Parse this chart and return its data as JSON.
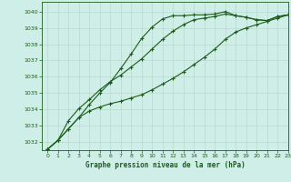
{
  "title": "Graphe pression niveau de la mer (hPa)",
  "background_color": "#d0eee8",
  "grid_color": "#b8d8cc",
  "line_color": "#1a5c1a",
  "xlim": [
    -0.5,
    23
  ],
  "ylim": [
    1031.5,
    1040.6
  ],
  "yticks": [
    1032,
    1033,
    1034,
    1035,
    1036,
    1037,
    1038,
    1039,
    1040
  ],
  "xticks": [
    0,
    1,
    2,
    3,
    4,
    5,
    6,
    7,
    8,
    9,
    10,
    11,
    12,
    13,
    14,
    15,
    16,
    17,
    18,
    19,
    20,
    21,
    22,
    23
  ],
  "series": {
    "line1": [
      1031.55,
      1032.1,
      1032.8,
      1033.5,
      1034.3,
      1035.0,
      1035.65,
      1036.5,
      1037.4,
      1038.35,
      1039.05,
      1039.55,
      1039.75,
      1039.75,
      1039.8,
      1039.8,
      1039.85,
      1040.0,
      1039.75,
      1039.65,
      1039.5,
      1039.45,
      1039.7,
      1039.8
    ],
    "line2": [
      1031.55,
      1032.1,
      1033.3,
      1034.05,
      1034.6,
      1035.2,
      1035.7,
      1036.1,
      1036.6,
      1037.1,
      1037.7,
      1038.3,
      1038.8,
      1039.2,
      1039.5,
      1039.6,
      1039.7,
      1039.85,
      1039.75,
      1039.65,
      1039.5,
      1039.45,
      1039.7,
      1039.8
    ],
    "line3": [
      1031.55,
      1032.1,
      1032.8,
      1033.5,
      1033.9,
      1034.15,
      1034.35,
      1034.5,
      1034.7,
      1034.9,
      1035.2,
      1035.55,
      1035.9,
      1036.3,
      1036.75,
      1037.2,
      1037.7,
      1038.3,
      1038.75,
      1039.0,
      1039.2,
      1039.4,
      1039.6,
      1039.8
    ]
  }
}
